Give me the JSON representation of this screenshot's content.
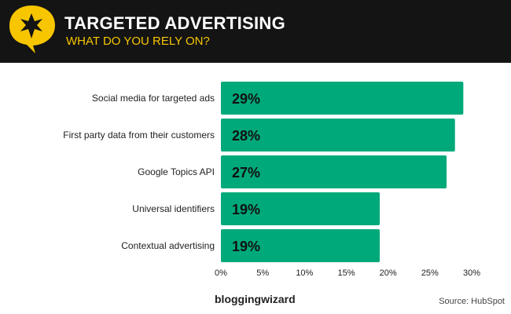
{
  "header": {
    "title": "TARGETED ADVERTISING",
    "subtitle": "WHAT DO YOU RELY ON?",
    "logo_icon": "star-speech-bubble-icon"
  },
  "footer": {
    "brand": "bloggingwizard",
    "source": "Source: HubSpot"
  },
  "colors": {
    "bar": "#00a97a",
    "header_bg": "#141414",
    "accent": "#f7c600"
  },
  "chart_data": {
    "type": "bar",
    "orientation": "horizontal",
    "title": "TARGETED ADVERTISING",
    "subtitle": "WHAT DO YOU RELY ON?",
    "categories": [
      "Social media for targeted ads",
      "First party data from their customers",
      "Google Topics API",
      "Universal identifiers",
      "Contextual advertising"
    ],
    "values": [
      29,
      28,
      27,
      19,
      19
    ],
    "labels": [
      "29%",
      "28%",
      "27%",
      "19%",
      "19%"
    ],
    "xlim": [
      0,
      30
    ],
    "xticks": [
      "0%",
      "5%",
      "10%",
      "15%",
      "20%",
      "25%",
      "30%"
    ],
    "grid": false
  }
}
